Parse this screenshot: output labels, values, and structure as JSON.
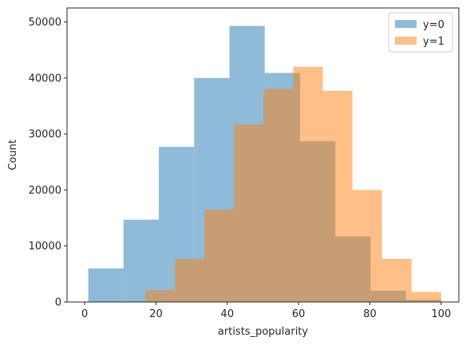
{
  "chart_data": {
    "type": "bar",
    "chart_kind": "overlaid-histogram",
    "xlabel": "artists_popularity",
    "ylabel": "Count",
    "xlim": [
      -4.95,
      104.95
    ],
    "ylim": [
      0,
      52500
    ],
    "x_ticks": [
      0,
      20,
      40,
      60,
      80,
      100
    ],
    "y_ticks": [
      0,
      10000,
      20000,
      30000,
      40000,
      50000
    ],
    "x_tick_labels": [
      "0",
      "20",
      "40",
      "60",
      "80",
      "100"
    ],
    "y_tick_labels": [
      "0",
      "10000",
      "20000",
      "30000",
      "40000",
      "50000"
    ],
    "grid": false,
    "legend_position": "top-right",
    "series": [
      {
        "name": "y=0",
        "color": "#1f77b4",
        "opacity": 0.5,
        "bin_edges": [
          1,
          10.9,
          20.8,
          30.7,
          40.6,
          50.5,
          60.4,
          70.3,
          80.2,
          90.1,
          100
        ],
        "counts": [
          6000,
          14700,
          27700,
          40000,
          49300,
          40900,
          28700,
          11700,
          2000,
          400
        ]
      },
      {
        "name": "y=1",
        "color": "#ff7f0e",
        "opacity": 0.5,
        "bin_edges": [
          17,
          25.3,
          33.6,
          41.9,
          50.2,
          58.5,
          66.8,
          75.1,
          83.4,
          91.7,
          100
        ],
        "counts": [
          2100,
          7700,
          16500,
          31700,
          38000,
          42000,
          37700,
          20000,
          7700,
          1800
        ]
      }
    ]
  }
}
